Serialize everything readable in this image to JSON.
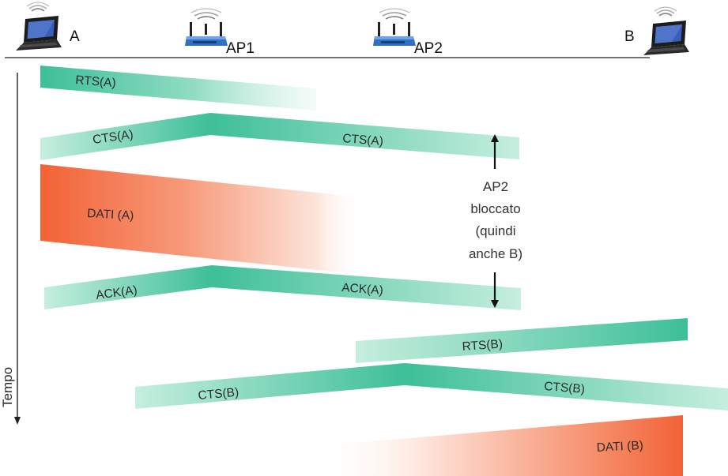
{
  "nodes": {
    "a": "A",
    "ap1": "AP1",
    "ap2": "AP2",
    "b": "B"
  },
  "axis_label": "Tempo",
  "bands": {
    "rts_a": "RTS(A)",
    "cts_a_left": "CTS(A)",
    "cts_a_right": "CTS(A)",
    "dati_a": "DATI (A)",
    "ack_a_left": "ACK(A)",
    "ack_a_right": "ACK(A)",
    "rts_b": "RTS(B)",
    "cts_b_left": "CTS(B)",
    "cts_b_right": "CTS(B)",
    "dati_b": "DATI (B)"
  },
  "annotation": {
    "line1": "AP2",
    "line2": "bloccato",
    "line3": "(quindi",
    "line4": "anche B)"
  },
  "colors": {
    "control_frame": "#3dbf98",
    "data_frame": "#f26236",
    "axis": "#222222"
  },
  "icons": {
    "station": "laptop-icon",
    "access_point": "wifi-router-icon"
  }
}
